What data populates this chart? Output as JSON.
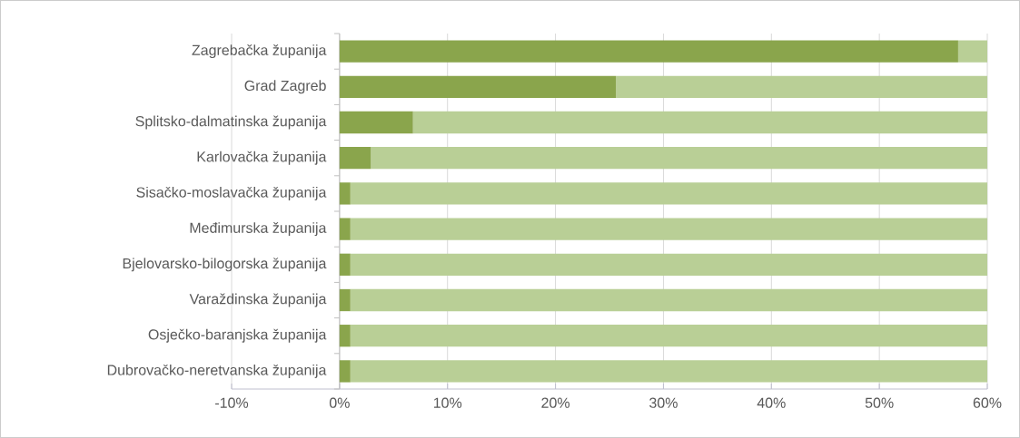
{
  "chart_data": {
    "type": "bar",
    "orientation": "horizontal",
    "stacked": true,
    "categories": [
      "Zagrebačka županija",
      "Grad Zagreb",
      "Splitsko-dalmatinska županija",
      "Karlovačka županija",
      "Sisačko-moslavačka županija",
      "Međimurska županija",
      "Bjelovarsko-bilogorska županija",
      "Varaždinska županija",
      "Osječko-baranjska županija",
      "Dubrovačko-neretvanska županija"
    ],
    "series": [
      {
        "color": "#8aa54c",
        "values": [
          57.3,
          25.6,
          6.8,
          2.9,
          1.0,
          1.0,
          1.0,
          1.0,
          1.0,
          1.0
        ]
      },
      {
        "color": "#b9cf96",
        "values": [
          2.7,
          34.4,
          53.2,
          57.1,
          59.0,
          59.0,
          59.0,
          59.0,
          59.0,
          59.0
        ]
      }
    ],
    "xlim": [
      -10,
      60
    ],
    "xticks": [
      {
        "value": -10,
        "label": "-10%"
      },
      {
        "value": 0,
        "label": "0%"
      },
      {
        "value": 10,
        "label": "10%"
      },
      {
        "value": 20,
        "label": "20%"
      },
      {
        "value": 30,
        "label": "30%"
      },
      {
        "value": 40,
        "label": "40%"
      },
      {
        "value": 50,
        "label": "50%"
      },
      {
        "value": 60,
        "label": "60%"
      }
    ],
    "grid": "x"
  }
}
